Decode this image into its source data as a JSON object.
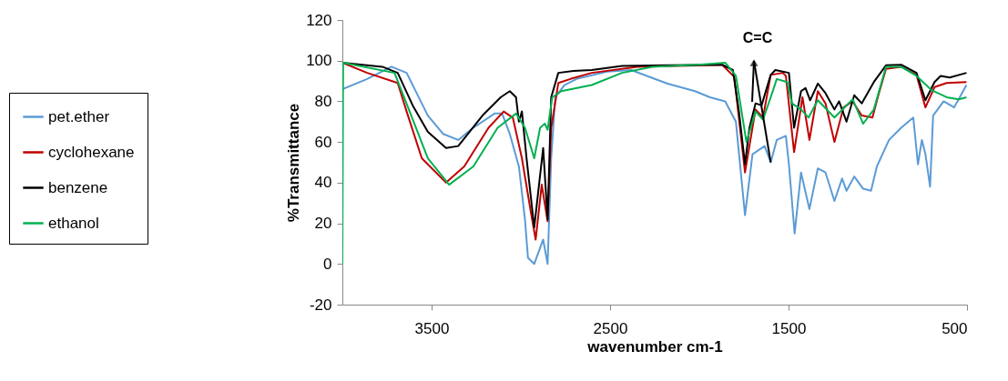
{
  "chart_data": {
    "type": "line",
    "xlabel": "wavenumber cm-1",
    "ylabel": "%Transmittance",
    "xlim": [
      4000,
      500
    ],
    "xticks": [
      3500,
      2500,
      1500,
      500
    ],
    "ylim": [
      -20,
      120
    ],
    "yticks": [
      -20,
      0,
      20,
      40,
      60,
      80,
      100,
      120
    ],
    "grid": false,
    "legend": "left",
    "marker": "none",
    "line_style": "solid",
    "annotations": [
      {
        "text": "C=C",
        "x": 1600,
        "y": 50
      }
    ],
    "series": [
      {
        "name": "pet.ether",
        "color": "#5b9bd5",
        "x": [
          4000,
          3861,
          3725,
          3640,
          3521,
          3436,
          3351,
          3266,
          3147,
          3105,
          3062,
          3011,
          2977,
          2960,
          2925,
          2875,
          2850,
          2830,
          2807,
          2756,
          2688,
          2517,
          2382,
          2178,
          2024,
          1940,
          1855,
          1795,
          1744,
          1702,
          1651,
          1634,
          1600,
          1566,
          1515,
          1498,
          1466,
          1430,
          1383,
          1336,
          1293,
          1243,
          1200,
          1175,
          1132,
          1082,
          1038,
          1005,
          937,
          869,
          801,
          775,
          753,
          733,
          707,
          690,
          631,
          572,
          503
        ],
        "values": [
          86,
          91,
          97,
          94,
          73,
          64,
          61,
          67,
          74,
          74,
          64,
          48,
          22,
          3,
          0,
          12,
          0,
          52,
          82,
          88,
          91,
          94.6,
          95.4,
          88.7,
          85,
          82,
          80,
          70,
          24,
          54,
          57,
          58,
          50,
          61,
          63,
          49,
          15,
          45,
          27,
          47,
          45,
          31,
          42,
          36,
          43,
          37,
          36,
          48,
          61,
          67,
          72,
          49,
          61,
          54,
          38,
          73,
          80,
          77,
          88
        ]
      },
      {
        "name": "cyclohexane",
        "color": "#c00000",
        "x": [
          4000,
          3861,
          3690,
          3640,
          3555,
          3419,
          3317,
          3181,
          3096,
          3045,
          2994,
          2943,
          2917,
          2883,
          2850,
          2830,
          2790,
          2722,
          2603,
          2348,
          1872,
          1804,
          1744,
          1685,
          1643,
          1600,
          1532,
          1515,
          1469,
          1422,
          1383,
          1336,
          1293,
          1243,
          1192,
          1141,
          1090,
          1030,
          997,
          954,
          869,
          783,
          733,
          682,
          614,
          503
        ],
        "values": [
          99,
          94,
          89,
          75,
          52,
          40,
          48,
          67,
          75,
          72,
          52,
          25,
          12,
          39,
          21,
          67,
          89,
          91,
          94,
          97,
          98,
          92,
          45,
          76,
          72,
          93,
          94,
          92.5,
          55,
          82,
          61,
          85,
          79,
          60,
          77,
          80,
          73,
          72,
          83,
          96,
          97,
          93,
          77,
          87,
          89,
          89.5
        ]
      },
      {
        "name": "benzene",
        "color": "#000000",
        "x": [
          4000,
          3776,
          3690,
          3606,
          3521,
          3419,
          3351,
          3215,
          3113,
          3062,
          3027,
          3011,
          2994,
          2968,
          2925,
          2875,
          2850,
          2830,
          2790,
          2705,
          2603,
          2433,
          2178,
          1872,
          1812,
          1778,
          1744,
          1719,
          1685,
          1651,
          1600,
          1574,
          1498,
          1469,
          1430,
          1405,
          1379,
          1336,
          1293,
          1243,
          1217,
          1175,
          1132,
          1090,
          1022,
          954,
          869,
          783,
          733,
          682,
          648,
          597,
          503
        ],
        "values": [
          99,
          97,
          94,
          78,
          65,
          57,
          58,
          73,
          82,
          85,
          82,
          70,
          75,
          52,
          18,
          57,
          22,
          82,
          94,
          95,
          95.4,
          97.4,
          97.7,
          98,
          95.4,
          75,
          49,
          67,
          79,
          78,
          93,
          95.4,
          94,
          67,
          85,
          86.5,
          80.5,
          88.7,
          84,
          76,
          80,
          70,
          83,
          79,
          89.5,
          97.7,
          98,
          94,
          80.5,
          89.5,
          92.5,
          91.7,
          94
        ]
      },
      {
        "name": "ethanol",
        "color": "#00b050",
        "x": [
          4000,
          3996,
          3708,
          3623,
          3521,
          3402,
          3266,
          3130,
          3027,
          2977,
          2925,
          2892,
          2866,
          2850,
          2824,
          2773,
          2603,
          2433,
          2263,
          2007,
          1855,
          1795,
          1736,
          1685,
          1643,
          1600,
          1566,
          1507,
          1481,
          1430,
          1388,
          1336,
          1243,
          1141,
          1082,
          1022,
          954,
          869,
          783,
          699,
          614,
          546,
          503
        ],
        "values": [
          0,
          99,
          94,
          75,
          52,
          39,
          48,
          67,
          74,
          67,
          52,
          67,
          69,
          66,
          82,
          85,
          88,
          94,
          97,
          98,
          99,
          92.5,
          60,
          75,
          71,
          82,
          91,
          89.5,
          79,
          76,
          72,
          80.5,
          72,
          81,
          69,
          76,
          97,
          97,
          92.5,
          85.5,
          82,
          81,
          82
        ]
      }
    ]
  }
}
